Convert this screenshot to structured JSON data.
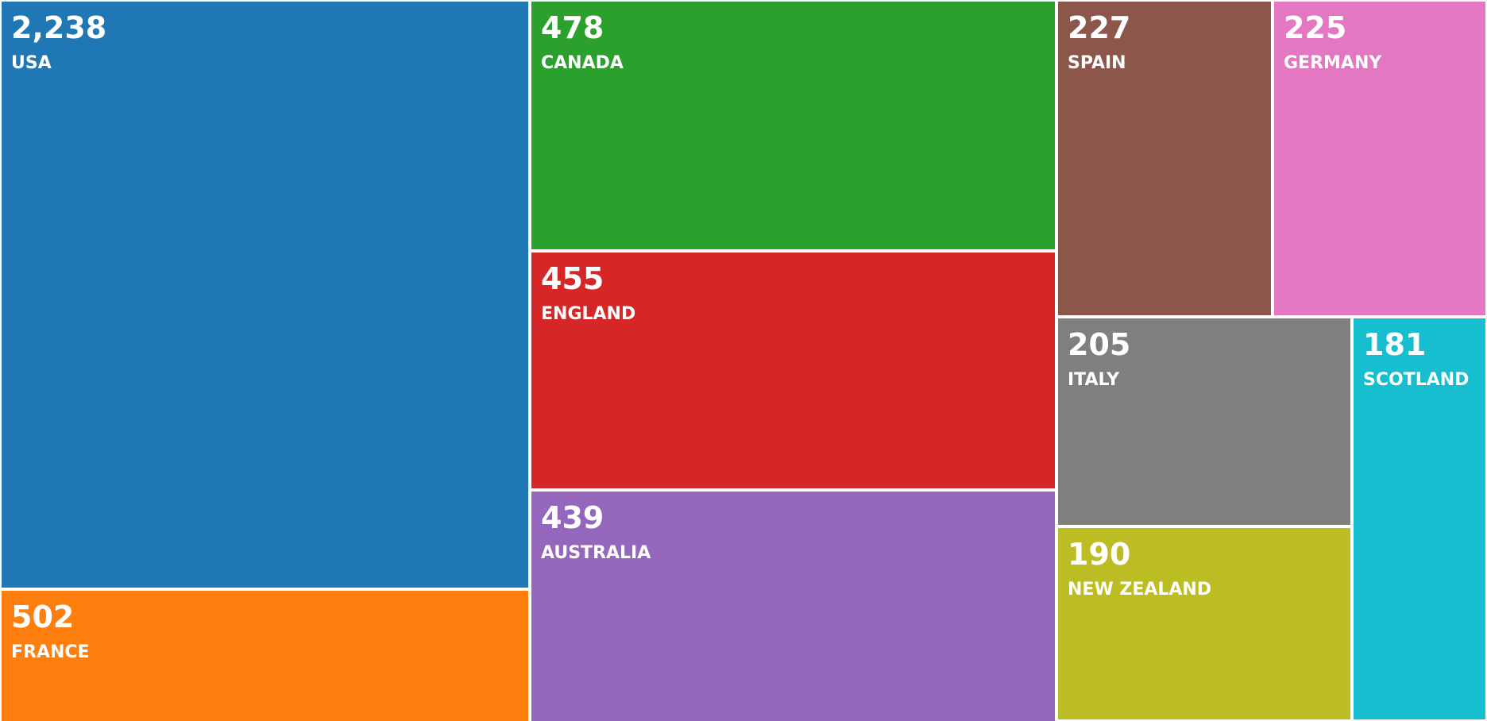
{
  "chart_data": {
    "type": "treemap",
    "title": "",
    "items": [
      {
        "label": "USA",
        "value": 2238,
        "display": "2,238",
        "color": "#1f77b4"
      },
      {
        "label": "FRANCE",
        "value": 502,
        "display": "502",
        "color": "#ff7f0e"
      },
      {
        "label": "CANADA",
        "value": 478,
        "display": "478",
        "color": "#2ca02c"
      },
      {
        "label": "ENGLAND",
        "value": 455,
        "display": "455",
        "color": "#d62728"
      },
      {
        "label": "AUSTRALIA",
        "value": 439,
        "display": "439",
        "color": "#9467bd"
      },
      {
        "label": "SPAIN",
        "value": 227,
        "display": "227",
        "color": "#8c564b"
      },
      {
        "label": "GERMANY",
        "value": 225,
        "display": "225",
        "color": "#e377c2"
      },
      {
        "label": "ITALY",
        "value": 205,
        "display": "205",
        "color": "#7f7f7f"
      },
      {
        "label": "NEW ZEALAND",
        "value": 190,
        "display": "190",
        "color": "#bcbd22"
      },
      {
        "label": "SCOTLAND",
        "value": 181,
        "display": "181",
        "color": "#17becf"
      }
    ]
  }
}
